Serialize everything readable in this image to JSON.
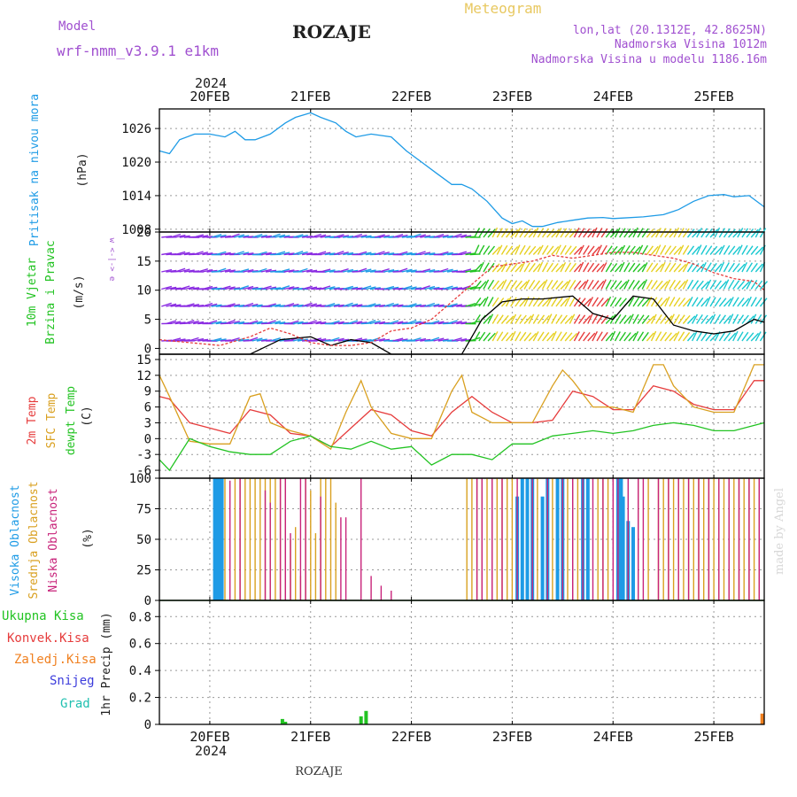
{
  "header": {
    "model_label": "Model",
    "model_name": "wrf-nmm_v3.9.1 e1km",
    "station": "ROZAJE",
    "meteogram": "Meteogram",
    "lonlat": "lon,lat (20.1312E, 42.8625N)",
    "elevation": "Nadmorska Visina 1012m",
    "model_elevation": "Nadmorska Visina u modelu 1186.16m",
    "year": "2024",
    "footer_station": "ROZAJE",
    "credit": "made by Angel"
  },
  "colors": {
    "pressure": "#1e9be6",
    "wind_label": "#22c322",
    "temp2m": "#e63c3c",
    "sfc": "#d9a020",
    "dewpt": "#22c322",
    "high_cloud": "#1e9be6",
    "mid_cloud": "#d9a020",
    "low_cloud": "#c8237a",
    "model_purple": "#a050d0",
    "precip_total": "#22c322",
    "precip_conv": "#e63c3c",
    "precip_frz": "#f08020",
    "precip_snow": "#3c3cdc",
    "precip_hail": "#20c0b0"
  },
  "chart_data": [
    {
      "type": "line",
      "panel": "pressure",
      "ylabel": "Pritisak na nivou mora",
      "unit": "(hPa)",
      "x_ticks": [
        "20FEB",
        "21FEB",
        "22FEB",
        "23FEB",
        "24FEB",
        "25FEB"
      ],
      "y_ticks": [
        1008,
        1014,
        1020,
        1026
      ],
      "ylim": [
        1007.5,
        1029.5
      ],
      "xlim_days": [
        19.5,
        25.5
      ],
      "series": [
        {
          "x": [
            19.5,
            19.6,
            19.7,
            19.85,
            20,
            20.15,
            20.25,
            20.35,
            20.45,
            20.6,
            20.75,
            20.85,
            21,
            21.1,
            21.25,
            21.35,
            21.45,
            21.6,
            21.8,
            21.95,
            22.1,
            22.25,
            22.4,
            22.5,
            22.6,
            22.75,
            22.9,
            23,
            23.1,
            23.2,
            23.3,
            23.45,
            23.6,
            23.75,
            23.9,
            24,
            24.1,
            24.3,
            24.5,
            24.65,
            24.8,
            24.95,
            25.1,
            25.2,
            25.35,
            25.5
          ],
          "y": [
            1022,
            1021.5,
            1024,
            1025,
            1025,
            1024.5,
            1025.5,
            1024,
            1024,
            1025,
            1027,
            1028,
            1028.8,
            1028,
            1027,
            1025.5,
            1024.5,
            1025,
            1024.5,
            1022,
            1020,
            1018,
            1016,
            1016,
            1015.2,
            1013,
            1010,
            1009,
            1009.5,
            1008.5,
            1008.5,
            1009.2,
            1009.6,
            1010,
            1010.1,
            1009.9,
            1010,
            1010.2,
            1010.6,
            1011.5,
            1013,
            1014,
            1014.2,
            1013.8,
            1014,
            1012
          ]
        }
      ]
    },
    {
      "type": "line",
      "panel": "wind",
      "ylabel": "10m Vjetar Brzina i Pravac",
      "unit": "(m/s)",
      "compass": "w <-|-> e",
      "y_ticks": [
        0,
        5,
        10,
        15,
        20
      ],
      "ylim": [
        -1,
        20
      ],
      "series": [
        {
          "kind": "speed",
          "x": [
            19.5,
            20.4,
            20.7,
            21,
            21.2,
            21.4,
            21.6,
            21.8,
            22.1,
            22.3,
            22.5,
            22.7,
            22.9,
            23.1,
            23.3,
            23.6,
            23.8,
            24,
            24.2,
            24.4,
            24.6,
            24.8,
            25,
            25.2,
            25.4,
            25.5
          ],
          "y": [
            -1,
            -1,
            1.5,
            2,
            0.5,
            1.5,
            1,
            -1,
            -1,
            -1,
            -1,
            5,
            8,
            8.5,
            8.5,
            9,
            6,
            5,
            9,
            8.5,
            4,
            3,
            2.5,
            3,
            5,
            4.5
          ]
        },
        {
          "kind": "gust",
          "x": [
            19.5,
            19.8,
            20.1,
            20.4,
            20.6,
            20.8,
            21,
            21.2,
            21.4,
            21.6,
            21.8,
            22,
            22.2,
            22.4,
            22.6,
            22.8,
            23,
            23.2,
            23.4,
            23.6,
            23.8,
            24,
            24.2,
            24.4,
            24.6,
            24.8,
            25,
            25.2,
            25.4,
            25.5
          ],
          "y": [
            1.5,
            1,
            0.5,
            2,
            3.5,
            2.5,
            1,
            0.5,
            0.5,
            1,
            3,
            3.5,
            5,
            8,
            11,
            14,
            14.5,
            15,
            16,
            15.5,
            16,
            16.5,
            16.5,
            16,
            15.5,
            14.5,
            13,
            12,
            11.5,
            10
          ]
        }
      ]
    },
    {
      "type": "line",
      "panel": "temperature",
      "series_labels": [
        "2m Temp",
        "SFC Temp",
        "dewpt Temp"
      ],
      "unit": "(C)",
      "y_ticks": [
        -6,
        -3,
        0,
        3,
        6,
        9,
        12,
        15
      ],
      "ylim": [
        -7.5,
        16
      ],
      "series": [
        {
          "name": "2m Temp",
          "x": [
            19.5,
            19.6,
            19.8,
            20,
            20.2,
            20.4,
            20.6,
            20.8,
            21,
            21.2,
            21.4,
            21.6,
            21.8,
            22,
            22.2,
            22.4,
            22.6,
            22.8,
            23,
            23.2,
            23.4,
            23.6,
            23.8,
            24,
            24.2,
            24.4,
            24.6,
            24.8,
            25,
            25.2,
            25.4,
            25.5
          ],
          "y": [
            8,
            7.5,
            3,
            2,
            1,
            5.5,
            4.5,
            1,
            0.5,
            -1.5,
            2,
            5.5,
            4.5,
            1.5,
            0.5,
            5,
            8,
            5,
            3,
            3,
            3.5,
            9,
            8,
            5.5,
            5.5,
            10,
            9,
            6.5,
            5.5,
            5.5,
            11,
            11
          ]
        },
        {
          "name": "SFC Temp",
          "x": [
            19.5,
            19.6,
            19.8,
            20,
            20.2,
            20.4,
            20.5,
            20.6,
            20.8,
            21,
            21.2,
            21.35,
            21.5,
            21.6,
            21.8,
            22,
            22.2,
            22.4,
            22.5,
            22.6,
            22.8,
            23,
            23.2,
            23.4,
            23.5,
            23.6,
            23.8,
            24,
            24.2,
            24.4,
            24.5,
            24.6,
            24.8,
            25,
            25.2,
            25.4,
            25.5
          ],
          "y": [
            12,
            8,
            -0.5,
            -1,
            -1,
            8,
            8.5,
            3,
            1.5,
            0.5,
            -2,
            5,
            11,
            6,
            1,
            0,
            0,
            9,
            12,
            5,
            3,
            3,
            3,
            10,
            13,
            11,
            6,
            6,
            5,
            14,
            14,
            10,
            6,
            5,
            5,
            14,
            14
          ]
        },
        {
          "name": "dewpt Temp",
          "x": [
            19.5,
            19.6,
            19.8,
            20,
            20.2,
            20.4,
            20.6,
            20.8,
            21,
            21.2,
            21.4,
            21.6,
            21.8,
            22,
            22.2,
            22.4,
            22.6,
            22.8,
            23,
            23.2,
            23.4,
            23.6,
            23.8,
            24,
            24.2,
            24.4,
            24.6,
            24.8,
            25,
            25.2,
            25.4,
            25.5
          ],
          "y": [
            -4,
            -6,
            0,
            -1.5,
            -2.5,
            -3,
            -3,
            -0.5,
            0.5,
            -1.5,
            -2,
            -0.5,
            -2,
            -1.5,
            -5,
            -3,
            -3,
            -4,
            -1,
            -1,
            0.5,
            1,
            1.5,
            1,
            1.5,
            2.5,
            3,
            2.5,
            1.5,
            1.5,
            2.5,
            3
          ]
        }
      ]
    },
    {
      "type": "bar",
      "panel": "clouds",
      "series_labels": [
        "Visoka Oblacnost",
        "Srednja Oblacnost",
        "Niska Oblacnost"
      ],
      "unit": "(%)",
      "y_ticks": [
        0,
        25,
        50,
        75,
        100
      ],
      "ylim": [
        0,
        100
      ],
      "series": [
        {
          "name": "Visoka Oblacnost",
          "x": [
            20.05,
            20.08,
            20.1,
            20.12,
            23.05,
            23.1,
            23.15,
            23.2,
            23.3,
            23.35,
            23.45,
            23.5,
            23.7,
            23.75,
            24.05,
            24.08,
            24.1,
            24.15,
            24.2
          ],
          "y": [
            100,
            100,
            100,
            100,
            85,
            100,
            100,
            100,
            85,
            100,
            100,
            100,
            100,
            100,
            100,
            100,
            85,
            65,
            60
          ]
        },
        {
          "name": "Srednja Oblacnost",
          "x": [
            20.15,
            20.25,
            20.3,
            20.35,
            20.4,
            20.45,
            20.5,
            20.55,
            20.6,
            20.65,
            20.7,
            20.75,
            20.8,
            20.85,
            20.9,
            20.95,
            21.0,
            21.05,
            21.1,
            21.15,
            21.2,
            21.25,
            22.55,
            22.6,
            22.65,
            22.7,
            22.75,
            22.8,
            22.85,
            22.9,
            22.95,
            23.0,
            23.25,
            23.4,
            23.55,
            23.6,
            23.65,
            23.85,
            23.9,
            23.95,
            24.25,
            24.35,
            24.45,
            24.5,
            24.55,
            24.6,
            24.65,
            24.7,
            24.75,
            24.8,
            24.85,
            24.9,
            24.95,
            25.0,
            25.05,
            25.1,
            25.15,
            25.2,
            25.25,
            25.3,
            25.35,
            25.4,
            25.45
          ],
          "y": [
            100,
            100,
            100,
            100,
            100,
            100,
            100,
            100,
            100,
            100,
            100,
            100,
            50,
            60,
            20,
            100,
            90,
            55,
            100,
            100,
            100,
            80,
            100,
            100,
            100,
            100,
            100,
            100,
            100,
            100,
            100,
            100,
            100,
            100,
            100,
            100,
            100,
            100,
            100,
            100,
            100,
            100,
            100,
            100,
            100,
            100,
            100,
            100,
            100,
            100,
            100,
            100,
            100,
            100,
            100,
            100,
            100,
            100,
            100,
            100,
            100,
            100,
            100
          ]
        },
        {
          "name": "Niska Oblacnost",
          "x": [
            20.2,
            20.3,
            20.55,
            20.6,
            20.7,
            20.75,
            20.8,
            20.9,
            20.95,
            21.1,
            21.3,
            21.35,
            21.5,
            21.6,
            21.7,
            21.8,
            22.65,
            22.7,
            22.8,
            22.9,
            23.05,
            23.2,
            23.35,
            23.5,
            23.6,
            23.7,
            23.8,
            23.9,
            24.0,
            24.05,
            24.15,
            24.25,
            24.3,
            24.45,
            24.55,
            24.65,
            24.75,
            24.85,
            24.95,
            25.05,
            25.15,
            25.25,
            25.35,
            25.45
          ],
          "y": [
            98,
            100,
            90,
            80,
            100,
            100,
            55,
            100,
            100,
            85,
            68,
            68,
            100,
            20,
            12,
            8,
            100,
            100,
            100,
            100,
            100,
            100,
            100,
            100,
            100,
            100,
            100,
            100,
            100,
            100,
            100,
            100,
            100,
            100,
            100,
            100,
            100,
            100,
            100,
            100,
            100,
            100,
            100,
            100
          ]
        }
      ]
    },
    {
      "type": "bar",
      "panel": "precipitation",
      "series_labels": [
        "Ukupna Kisa",
        "Konvek.Kisa",
        "Zaledj.Kisa",
        "Snijeg",
        "Grad"
      ],
      "ylabel": "1hr Precip (mm)",
      "y_ticks": [
        0,
        0.2,
        0.4,
        0.6,
        0.8
      ],
      "ylim": [
        0,
        0.92
      ],
      "series": [
        {
          "name": "Ukupna Kisa",
          "x": [
            20.72,
            20.75,
            21.5,
            21.55
          ],
          "y": [
            0.04,
            0.02,
            0.06,
            0.1
          ]
        },
        {
          "name": "Zaledj.Kisa",
          "x": [
            25.48
          ],
          "y": [
            0.08
          ]
        }
      ]
    }
  ]
}
